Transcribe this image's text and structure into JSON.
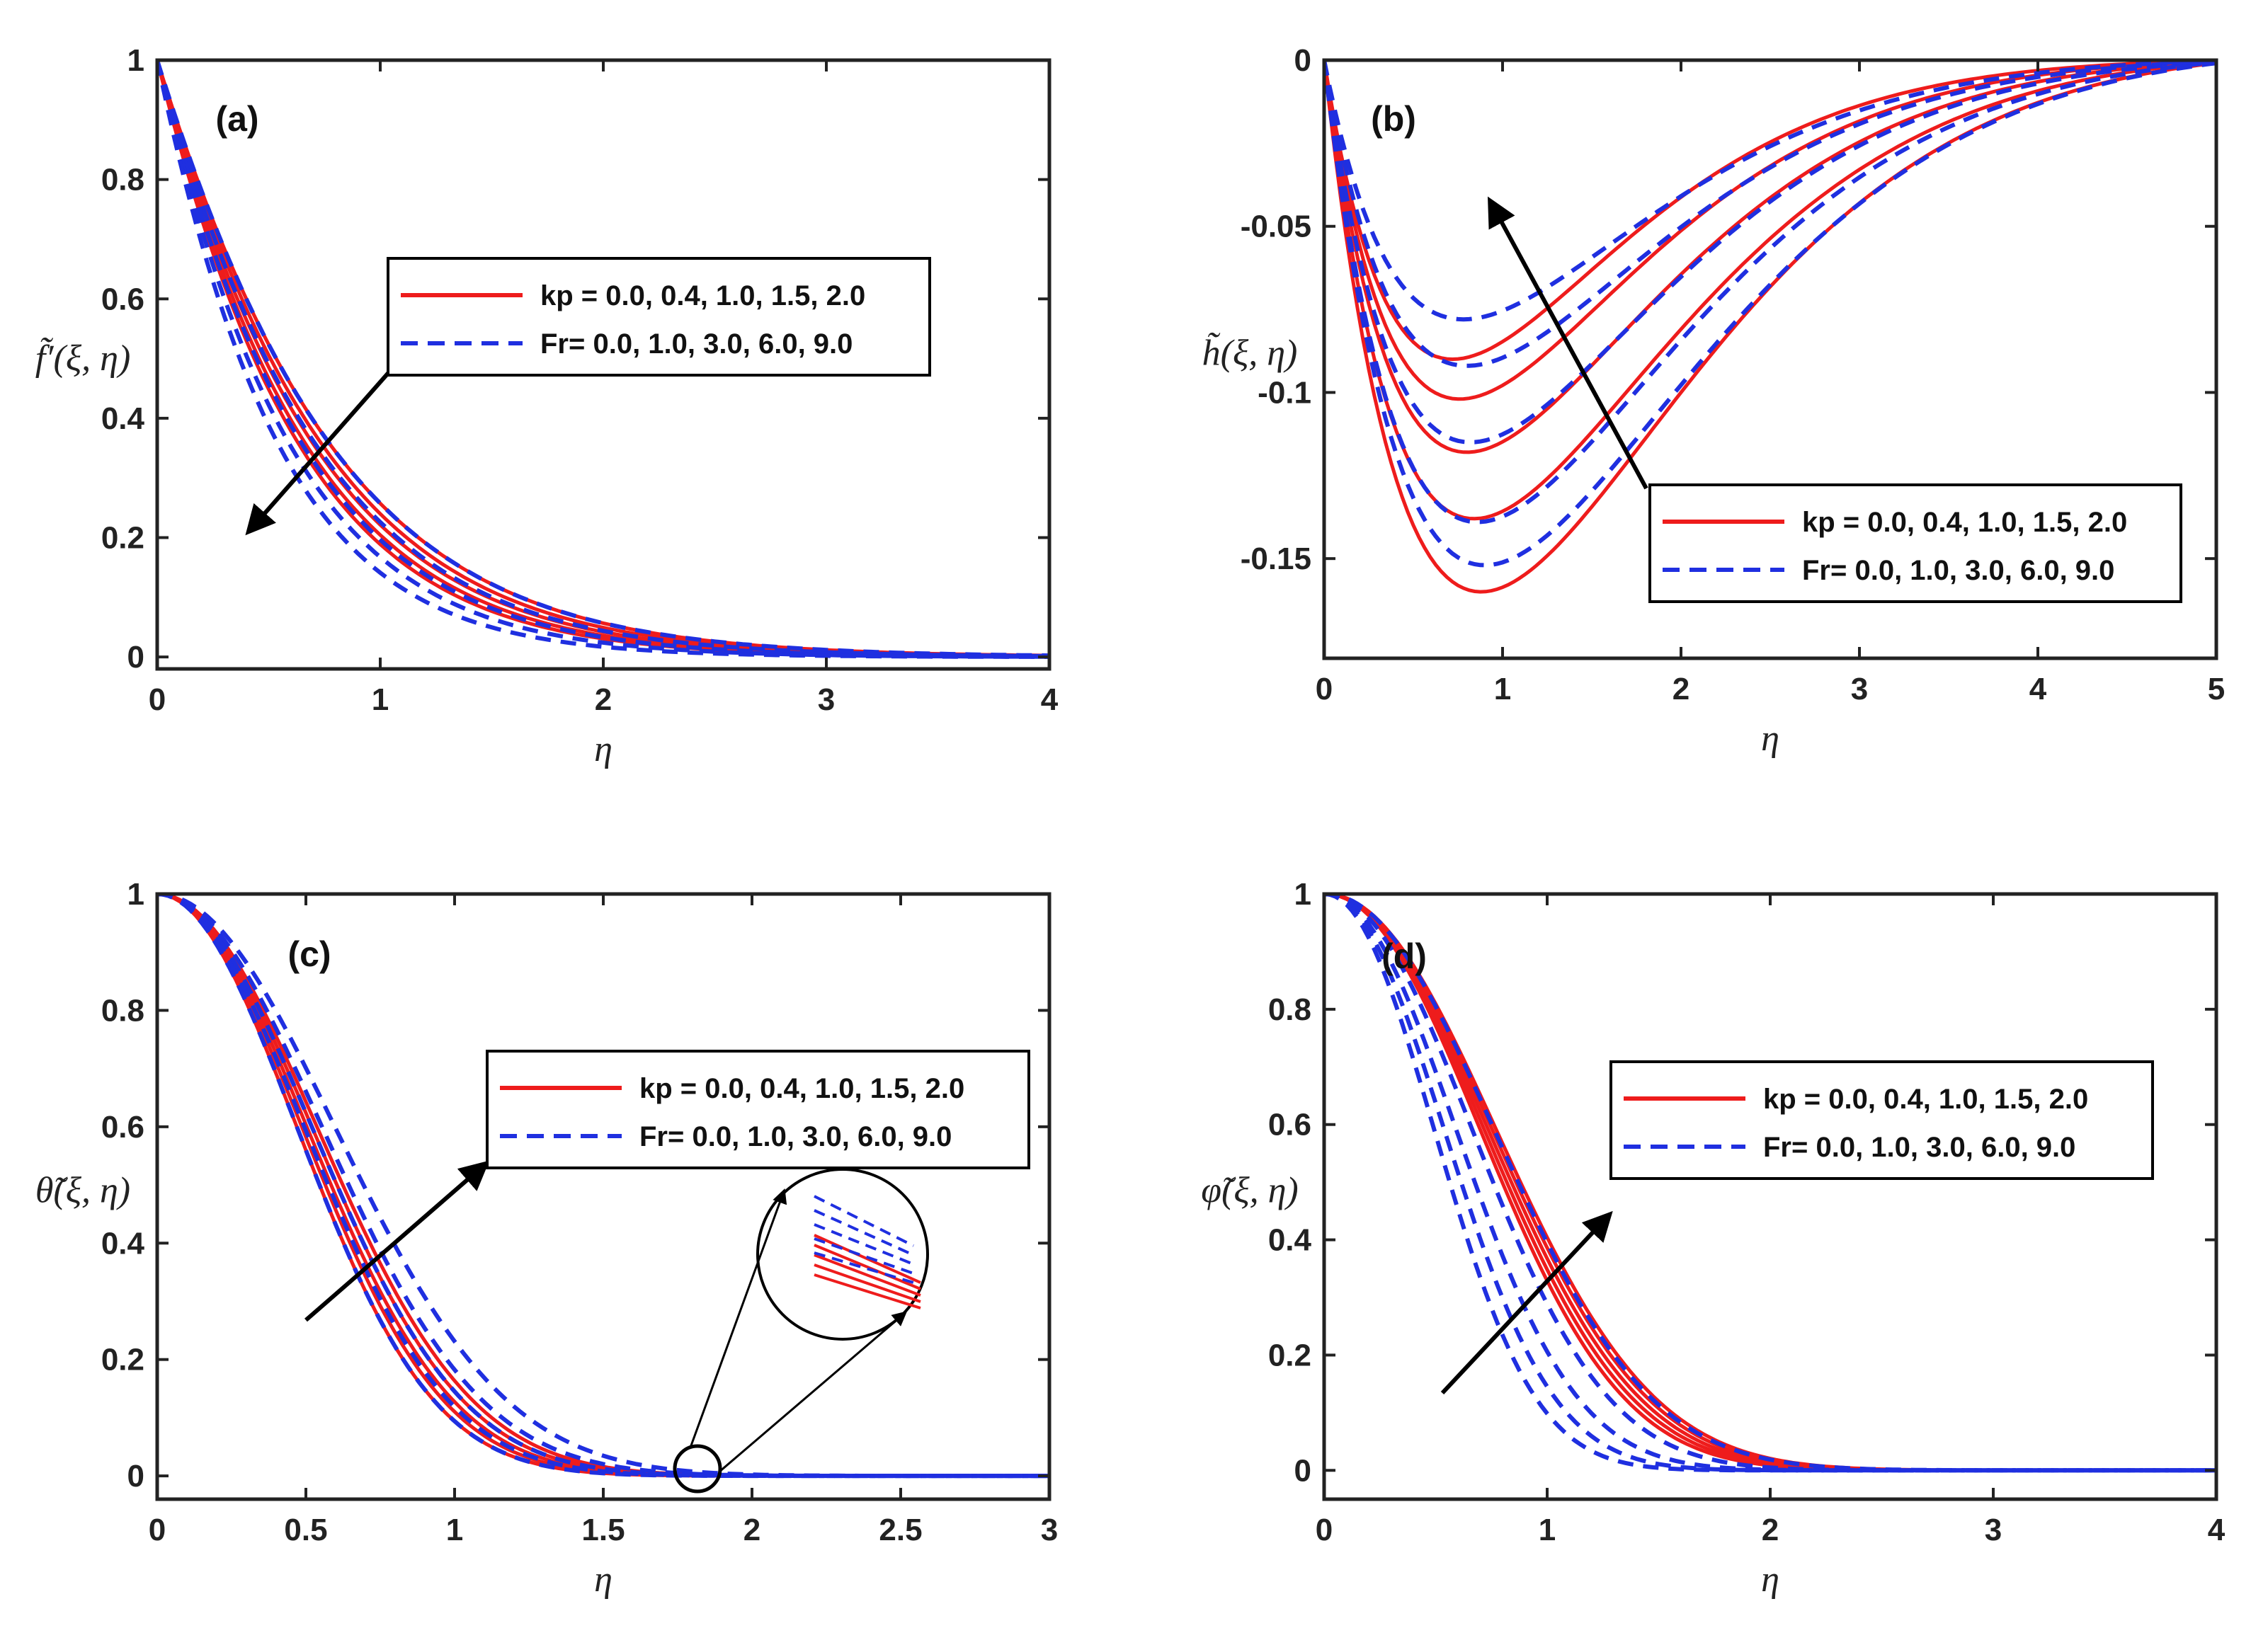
{
  "colors": {
    "kp": "#ee1c1c",
    "Fr": "#1f2fe0",
    "axis": "#222222",
    "arrow": "#000000"
  },
  "chart_data": [
    {
      "type": "line",
      "panel": "(a)",
      "xlabel": "η",
      "ylabel": "f̃′(ξ, η)",
      "xlim": [
        0,
        4
      ],
      "ylim": [
        -0.02,
        1
      ],
      "xticks": [
        "0",
        "1",
        "2",
        "3",
        "4"
      ],
      "yticks": [
        "0",
        "0.2",
        "0.4",
        "0.6",
        "0.8",
        "1"
      ],
      "legend": [
        "kp = 0.0, 0.4, 1.0, 1.5, 2.0",
        "Fr= 0.0, 1.0, 3.0, 6.0, 9.0"
      ],
      "legend_placement": "center-right",
      "arrow_direction": "down-left",
      "series": [
        {
          "group": "kp",
          "values": [
            0.0,
            0.0
          ],
          "decay": 1.55
        },
        {
          "group": "kp",
          "decay": 1.62
        },
        {
          "group": "kp",
          "decay": 1.7
        },
        {
          "group": "kp",
          "decay": 1.78
        },
        {
          "group": "kp",
          "decay": 1.86
        },
        {
          "group": "Fr",
          "decay": 1.55
        },
        {
          "group": "Fr",
          "decay": 1.68
        },
        {
          "group": "Fr",
          "decay": 1.82
        },
        {
          "group": "Fr",
          "decay": 1.98
        },
        {
          "group": "Fr",
          "decay": 2.15
        }
      ]
    },
    {
      "type": "line",
      "panel": "(b)",
      "xlabel": "η",
      "ylabel": "h̃(ξ, η)",
      "xlim": [
        0,
        5
      ],
      "ylim": [
        -0.18,
        0
      ],
      "xticks": [
        "0",
        "1",
        "2",
        "3",
        "4",
        "5"
      ],
      "yticks": [
        "-0.15",
        "-0.1",
        "-0.05",
        "0"
      ],
      "legend": [
        "kp = 0.0, 0.4, 1.0, 1.5, 2.0",
        "Fr= 0.0, 1.0, 3.0, 6.0, 9.0"
      ],
      "legend_placement": "bottom-right",
      "arrow_direction": "up",
      "series": [
        {
          "group": "kp",
          "minimum": -0.16,
          "at": 0.88
        },
        {
          "group": "kp",
          "minimum": -0.138,
          "at": 0.84
        },
        {
          "group": "kp",
          "minimum": -0.118,
          "at": 0.8
        },
        {
          "group": "kp",
          "minimum": -0.102,
          "at": 0.76
        },
        {
          "group": "kp",
          "minimum": -0.09,
          "at": 0.72
        },
        {
          "group": "Fr",
          "minimum": -0.152,
          "at": 0.9
        },
        {
          "group": "Fr",
          "minimum": -0.139,
          "at": 0.86
        },
        {
          "group": "Fr",
          "minimum": -0.115,
          "at": 0.82
        },
        {
          "group": "Fr",
          "minimum": -0.092,
          "at": 0.8
        },
        {
          "group": "Fr",
          "minimum": -0.078,
          "at": 0.78
        }
      ]
    },
    {
      "type": "line",
      "panel": "(c)",
      "xlabel": "η",
      "ylabel": "θ̃(ξ, η)",
      "xlim": [
        0,
        3
      ],
      "ylim": [
        -0.04,
        1
      ],
      "xticks": [
        "0",
        "0.5",
        "1",
        "1.5",
        "2",
        "2.5",
        "3"
      ],
      "yticks": [
        "0",
        "0.2",
        "0.4",
        "0.6",
        "0.8",
        "1"
      ],
      "legend": [
        "kp = 0.0, 0.4, 1.0, 1.5, 2.0",
        "Fr= 0.0, 1.0, 3.0, 6.0, 9.0"
      ],
      "legend_placement": "center-right",
      "arrow_direction": "up-right",
      "inset": "zoom near η = 1.8",
      "series": [
        {
          "group": "kp",
          "width": 0.6
        },
        {
          "group": "kp",
          "width": 0.62
        },
        {
          "group": "kp",
          "width": 0.64
        },
        {
          "group": "kp",
          "width": 0.66
        },
        {
          "group": "kp",
          "width": 0.68
        },
        {
          "group": "Fr",
          "width": 0.6
        },
        {
          "group": "Fr",
          "width": 0.63
        },
        {
          "group": "Fr",
          "width": 0.66
        },
        {
          "group": "Fr",
          "width": 0.7
        },
        {
          "group": "Fr",
          "width": 0.75
        }
      ]
    },
    {
      "type": "line",
      "panel": "(d)",
      "xlabel": "η",
      "ylabel": "φ̃(ξ, η)",
      "xlim": [
        0,
        4
      ],
      "ylim": [
        -0.05,
        1
      ],
      "xticks": [
        "0",
        "1",
        "2",
        "3",
        "4"
      ],
      "yticks": [
        "0",
        "0.2",
        "0.4",
        "0.6",
        "0.8",
        "1"
      ],
      "legend": [
        "kp = 0.0, 0.4, 1.0, 1.5, 2.0",
        "Fr= 0.0, 1.0, 3.0, 6.0, 9.0"
      ],
      "legend_placement": "center-right",
      "arrow_direction": "up-right",
      "series": [
        {
          "group": "kp",
          "width": 0.78
        },
        {
          "group": "kp",
          "width": 0.8
        },
        {
          "group": "kp",
          "width": 0.82
        },
        {
          "group": "kp",
          "width": 0.84
        },
        {
          "group": "kp",
          "width": 0.86
        },
        {
          "group": "Fr",
          "width": 0.55
        },
        {
          "group": "Fr",
          "width": 0.6
        },
        {
          "group": "Fr",
          "width": 0.66
        },
        {
          "group": "Fr",
          "width": 0.74
        },
        {
          "group": "Fr",
          "width": 0.85
        }
      ]
    }
  ]
}
